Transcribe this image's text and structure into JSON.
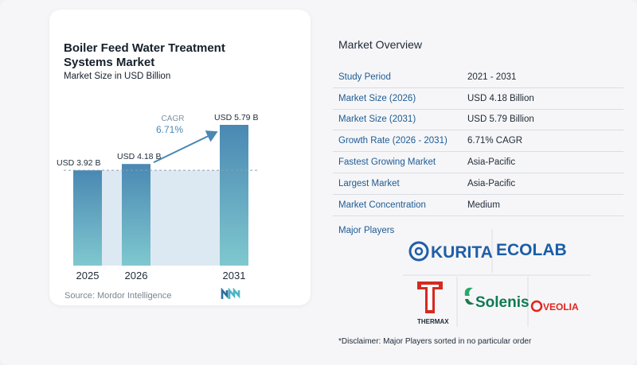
{
  "chart": {
    "title": "Boiler Feed Water Treatment Systems Market",
    "subtitle": "Market Size in USD Billion",
    "source": "Source:  Mordor Intelligence",
    "cagr_label": "CAGR",
    "cagr_value": "6.71%",
    "bar_color_top": "#4a88b3",
    "bar_color_bottom": "#7fc8cf",
    "band_color": "#dde9f2"
  },
  "chart_data": {
    "type": "bar",
    "categories": [
      "2025",
      "2026",
      "2031"
    ],
    "values": [
      3.92,
      4.18,
      5.79
    ],
    "data_labels": [
      "USD 3.92 B",
      "USD 4.18 B",
      "USD 5.79 B"
    ],
    "title": "Boiler Feed Water Treatment Systems Market",
    "subtitle": "Market Size in USD Billion",
    "xlabel": "",
    "ylabel": "",
    "ylim": [
      0,
      5.79
    ],
    "grid": false,
    "annotation": "CAGR 6.71%"
  },
  "overview": {
    "title": "Market Overview",
    "rows": [
      {
        "key": "Study Period",
        "value": "2021 - 2031"
      },
      {
        "key": "Market Size (2026)",
        "value": "USD 4.18 Billion"
      },
      {
        "key": "Market Size (2031)",
        "value": "USD 5.79 Billion"
      },
      {
        "key": "Growth Rate (2026 - 2031)",
        "value": "6.71% CAGR"
      },
      {
        "key": "Fastest Growing Market",
        "value": "Asia-Pacific"
      },
      {
        "key": "Largest Market",
        "value": "Asia-Pacific"
      },
      {
        "key": "Market Concentration",
        "value": "Medium"
      }
    ]
  },
  "players": {
    "heading": "Major Players",
    "kurita": "KURITA",
    "ecolab": "ECOLAB",
    "thermax": "THERMAX",
    "solenis": "Solenis",
    "veolia": "VEOLIA"
  },
  "disclaimer": "*Disclaimer: Major Players sorted in no particular order"
}
